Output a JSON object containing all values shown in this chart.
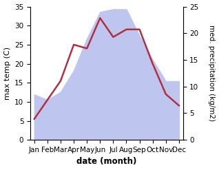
{
  "months": [
    "Jan",
    "Feb",
    "Mar",
    "Apr",
    "May",
    "Jun",
    "Jul",
    "Aug",
    "Sep",
    "Oct",
    "Nov",
    "Dec"
  ],
  "month_positions": [
    0,
    1,
    2,
    3,
    4,
    5,
    6,
    7,
    8,
    9,
    10,
    11
  ],
  "temperature": [
    5.5,
    10.5,
    15.5,
    25.0,
    24.0,
    32.0,
    27.0,
    29.0,
    29.0,
    20.0,
    12.0,
    9.0
  ],
  "precipitation": [
    8.5,
    7.5,
    9.0,
    13.0,
    19.0,
    24.0,
    24.5,
    24.5,
    19.5,
    15.0,
    11.0,
    11.0
  ],
  "temp_color": "#b03040",
  "precip_fill_color": "#bec5ef",
  "precip_edge_color": "#bec5ef",
  "temp_ylim": [
    0,
    35
  ],
  "precip_ylim": [
    0,
    25
  ],
  "temp_yticks": [
    0,
    5,
    10,
    15,
    20,
    25,
    30,
    35
  ],
  "precip_yticks": [
    0,
    5,
    10,
    15,
    20,
    25
  ],
  "xlabel": "date (month)",
  "ylabel_left": "max temp (C)",
  "ylabel_right": "med. precipitation (kg/m2)",
  "label_fontsize": 8,
  "tick_fontsize": 7.5
}
